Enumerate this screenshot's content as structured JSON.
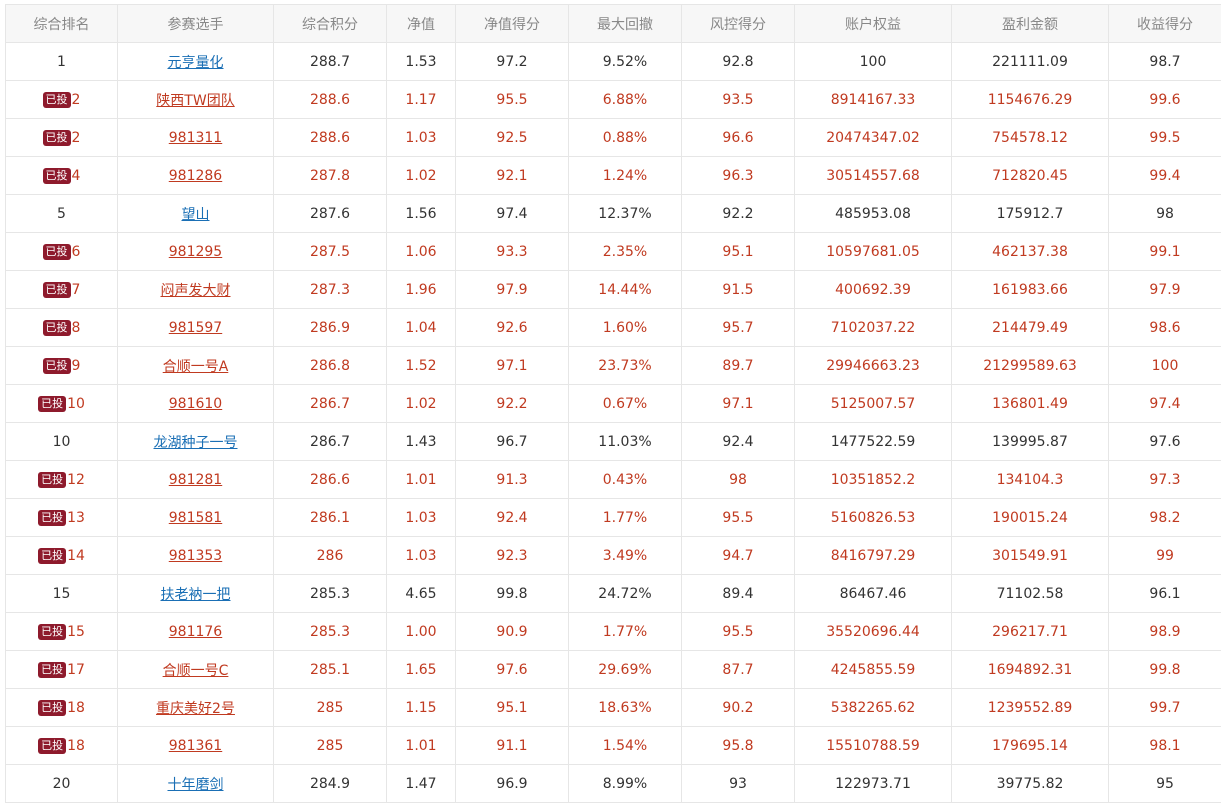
{
  "columns": [
    "综合排名",
    "参赛选手",
    "综合积分",
    "净值",
    "净值得分",
    "最大回撤",
    "风控得分",
    "账户权益",
    "盈利金额",
    "收益得分"
  ],
  "badge_label": "已投",
  "colors": {
    "normal_text": "#333333",
    "invested_text": "#c03a20",
    "normal_link": "#1a6fb5",
    "badge_bg": "#8e1a2c",
    "header_bg": "#f7f7f7",
    "header_text": "#888888",
    "border": "#e6e6e6"
  },
  "rows": [
    {
      "invested": false,
      "rank": "1",
      "name": "元亨量化",
      "score": "288.7",
      "nav": "1.53",
      "nav_score": "97.2",
      "max_dd": "9.52%",
      "risk_score": "92.8",
      "equity": "100",
      "profit": "221111.09",
      "return_score": "98.7"
    },
    {
      "invested": true,
      "rank": "2",
      "name": "陕西TW团队",
      "score": "288.6",
      "nav": "1.17",
      "nav_score": "95.5",
      "max_dd": "6.88%",
      "risk_score": "93.5",
      "equity": "8914167.33",
      "profit": "1154676.29",
      "return_score": "99.6"
    },
    {
      "invested": true,
      "rank": "2",
      "name": "981311",
      "score": "288.6",
      "nav": "1.03",
      "nav_score": "92.5",
      "max_dd": "0.88%",
      "risk_score": "96.6",
      "equity": "20474347.02",
      "profit": "754578.12",
      "return_score": "99.5"
    },
    {
      "invested": true,
      "rank": "4",
      "name": "981286",
      "score": "287.8",
      "nav": "1.02",
      "nav_score": "92.1",
      "max_dd": "1.24%",
      "risk_score": "96.3",
      "equity": "30514557.68",
      "profit": "712820.45",
      "return_score": "99.4"
    },
    {
      "invested": false,
      "rank": "5",
      "name": "望山",
      "score": "287.6",
      "nav": "1.56",
      "nav_score": "97.4",
      "max_dd": "12.37%",
      "risk_score": "92.2",
      "equity": "485953.08",
      "profit": "175912.7",
      "return_score": "98"
    },
    {
      "invested": true,
      "rank": "6",
      "name": "981295",
      "score": "287.5",
      "nav": "1.06",
      "nav_score": "93.3",
      "max_dd": "2.35%",
      "risk_score": "95.1",
      "equity": "10597681.05",
      "profit": "462137.38",
      "return_score": "99.1"
    },
    {
      "invested": true,
      "rank": "7",
      "name": "闷声发大财",
      "score": "287.3",
      "nav": "1.96",
      "nav_score": "97.9",
      "max_dd": "14.44%",
      "risk_score": "91.5",
      "equity": "400692.39",
      "profit": "161983.66",
      "return_score": "97.9"
    },
    {
      "invested": true,
      "rank": "8",
      "name": "981597",
      "score": "286.9",
      "nav": "1.04",
      "nav_score": "92.6",
      "max_dd": "1.60%",
      "risk_score": "95.7",
      "equity": "7102037.22",
      "profit": "214479.49",
      "return_score": "98.6"
    },
    {
      "invested": true,
      "rank": "9",
      "name": "合顺一号A",
      "score": "286.8",
      "nav": "1.52",
      "nav_score": "97.1",
      "max_dd": "23.73%",
      "risk_score": "89.7",
      "equity": "29946663.23",
      "profit": "21299589.63",
      "return_score": "100"
    },
    {
      "invested": true,
      "rank": "10",
      "name": "981610",
      "score": "286.7",
      "nav": "1.02",
      "nav_score": "92.2",
      "max_dd": "0.67%",
      "risk_score": "97.1",
      "equity": "5125007.57",
      "profit": "136801.49",
      "return_score": "97.4"
    },
    {
      "invested": false,
      "rank": "10",
      "name": "龙湖种子一号",
      "score": "286.7",
      "nav": "1.43",
      "nav_score": "96.7",
      "max_dd": "11.03%",
      "risk_score": "92.4",
      "equity": "1477522.59",
      "profit": "139995.87",
      "return_score": "97.6"
    },
    {
      "invested": true,
      "rank": "12",
      "name": "981281",
      "score": "286.6",
      "nav": "1.01",
      "nav_score": "91.3",
      "max_dd": "0.43%",
      "risk_score": "98",
      "equity": "10351852.2",
      "profit": "134104.3",
      "return_score": "97.3"
    },
    {
      "invested": true,
      "rank": "13",
      "name": "981581",
      "score": "286.1",
      "nav": "1.03",
      "nav_score": "92.4",
      "max_dd": "1.77%",
      "risk_score": "95.5",
      "equity": "5160826.53",
      "profit": "190015.24",
      "return_score": "98.2"
    },
    {
      "invested": true,
      "rank": "14",
      "name": "981353",
      "score": "286",
      "nav": "1.03",
      "nav_score": "92.3",
      "max_dd": "3.49%",
      "risk_score": "94.7",
      "equity": "8416797.29",
      "profit": "301549.91",
      "return_score": "99"
    },
    {
      "invested": false,
      "rank": "15",
      "name": "扶老衲一把",
      "score": "285.3",
      "nav": "4.65",
      "nav_score": "99.8",
      "max_dd": "24.72%",
      "risk_score": "89.4",
      "equity": "86467.46",
      "profit": "71102.58",
      "return_score": "96.1"
    },
    {
      "invested": true,
      "rank": "15",
      "name": "981176",
      "score": "285.3",
      "nav": "1.00",
      "nav_score": "90.9",
      "max_dd": "1.77%",
      "risk_score": "95.5",
      "equity": "35520696.44",
      "profit": "296217.71",
      "return_score": "98.9"
    },
    {
      "invested": true,
      "rank": "17",
      "name": "合顺一号C",
      "score": "285.1",
      "nav": "1.65",
      "nav_score": "97.6",
      "max_dd": "29.69%",
      "risk_score": "87.7",
      "equity": "4245855.59",
      "profit": "1694892.31",
      "return_score": "99.8"
    },
    {
      "invested": true,
      "rank": "18",
      "name": "重庆美好2号",
      "score": "285",
      "nav": "1.15",
      "nav_score": "95.1",
      "max_dd": "18.63%",
      "risk_score": "90.2",
      "equity": "5382265.62",
      "profit": "1239552.89",
      "return_score": "99.7"
    },
    {
      "invested": true,
      "rank": "18",
      "name": "981361",
      "score": "285",
      "nav": "1.01",
      "nav_score": "91.1",
      "max_dd": "1.54%",
      "risk_score": "95.8",
      "equity": "15510788.59",
      "profit": "179695.14",
      "return_score": "98.1"
    },
    {
      "invested": false,
      "rank": "20",
      "name": "十年磨剑",
      "score": "284.9",
      "nav": "1.47",
      "nav_score": "96.9",
      "max_dd": "8.99%",
      "risk_score": "93",
      "equity": "122973.71",
      "profit": "39775.82",
      "return_score": "95"
    }
  ]
}
